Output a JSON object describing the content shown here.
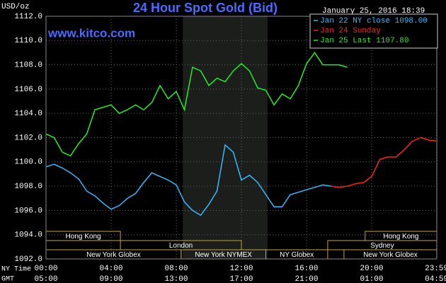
{
  "chart_data": {
    "type": "line",
    "title": "24 Hour Spot Gold (Bid)",
    "timestamp": "January 25, 2016 18:39",
    "source": "www.kitco.com",
    "y_label": "USD/oz",
    "x_label": "NY Time",
    "x2_label": "GMT",
    "xlim": [
      0,
      24
    ],
    "ylim": [
      1092,
      1112
    ],
    "grid": true,
    "legend": "top-right",
    "yticks": [
      {
        "value": 1092,
        "label": "1092.0"
      },
      {
        "value": 1094,
        "label": "1094.0"
      },
      {
        "value": 1096,
        "label": "1096.0"
      },
      {
        "value": 1098,
        "label": "1098.0"
      },
      {
        "value": 1100,
        "label": "1100.0"
      },
      {
        "value": 1102,
        "label": "1102.0"
      },
      {
        "value": 1104,
        "label": "1104.0"
      },
      {
        "value": 1106,
        "label": "1106.0"
      },
      {
        "value": 1108,
        "label": "1108.0"
      },
      {
        "value": 1110,
        "label": "1110.0"
      },
      {
        "value": 1112,
        "label": "1112.0"
      }
    ],
    "xticks": [
      {
        "value": 0,
        "label": "00:00"
      },
      {
        "value": 4,
        "label": "04:00"
      },
      {
        "value": 8,
        "label": "08:00"
      },
      {
        "value": 12,
        "label": "12:00"
      },
      {
        "value": 16,
        "label": "16:00"
      },
      {
        "value": 20,
        "label": "20:00"
      },
      {
        "value": 23.983,
        "label": "23:59"
      }
    ],
    "xticks_gmt": [
      {
        "value": 0,
        "label": "05:00"
      },
      {
        "value": 4,
        "label": "09:00"
      },
      {
        "value": 8,
        "label": "13:00"
      },
      {
        "value": 12,
        "label": "17:00"
      },
      {
        "value": 16,
        "label": "21:00"
      },
      {
        "value": 20,
        "label": "01:00"
      },
      {
        "value": 23.983,
        "label": "04:59"
      }
    ],
    "shaded": [
      8.4,
      13.6
    ],
    "sessions": [
      [
        {
          "label": "Hong Kong",
          "start": 0,
          "end": 4.57
        },
        {
          "label": "Hong Kong",
          "start": 19.6,
          "end": 24
        }
      ],
      [
        {
          "label": "London",
          "start": 4.57,
          "end": 12.0
        },
        {
          "label": "Sydney",
          "start": 17.3,
          "end": 24
        }
      ],
      [
        {
          "label": "New York Globex",
          "start": 0,
          "end": 8.3
        },
        {
          "label": "New York NYMEX",
          "start": 8.3,
          "end": 13.5
        },
        {
          "label": "NY Globex",
          "start": 13.5,
          "end": 17.3
        },
        {
          "label": "New York Globex",
          "start": 18.3,
          "end": 24
        }
      ]
    ],
    "series": [
      {
        "name": "Jan 22 NY close 1098.00",
        "color": "#33bbff",
        "x": [
          0,
          0.5,
          1,
          1.5,
          2,
          2.5,
          3,
          3.5,
          4,
          4.5,
          5,
          5.5,
          6,
          6.5,
          7,
          7.5,
          8,
          8.5,
          9,
          9.5,
          10,
          10.5,
          11,
          11.5,
          12,
          12.5,
          13,
          13.5,
          14,
          14.5,
          15,
          15.5,
          16,
          16.5,
          17,
          17.5
        ],
        "values": [
          1099.6,
          1099.8,
          1099.5,
          1099.1,
          1098.6,
          1097.6,
          1097.2,
          1096.6,
          1096.1,
          1096.4,
          1097.0,
          1097.4,
          1098.3,
          1099.1,
          1098.8,
          1098.5,
          1098.1,
          1096.7,
          1096.0,
          1095.6,
          1096.5,
          1097.6,
          1101.4,
          1100.8,
          1098.5,
          1098.9,
          1098.3,
          1097.3,
          1096.3,
          1096.3,
          1097.3,
          1097.5,
          1097.7,
          1097.9,
          1098.1,
          1098.0
        ]
      },
      {
        "name": "Jan 24 Sunday",
        "color": "#ff2020",
        "x": [
          17.5,
          18,
          18.5,
          19,
          19.5,
          20,
          20.5,
          21,
          21.5,
          22,
          22.5,
          23,
          23.5,
          24
        ],
        "values": [
          1098.0,
          1097.9,
          1098.0,
          1098.2,
          1098.3,
          1098.8,
          1100.2,
          1100.4,
          1100.4,
          1101.0,
          1101.7,
          1102.0,
          1101.8,
          1101.7
        ]
      },
      {
        "name": "Jan 25 Last 1107.80",
        "color": "#22ee22",
        "x": [
          0,
          0.5,
          1,
          1.5,
          2,
          2.5,
          3,
          3.5,
          4,
          4.5,
          5,
          5.5,
          6,
          6.5,
          7,
          7.5,
          8,
          8.5,
          9,
          9.5,
          10,
          10.5,
          11,
          11.5,
          12,
          12.5,
          13,
          13.5,
          14,
          14.5,
          15,
          15.5,
          16,
          16.5,
          17,
          17.5,
          18,
          18.5
        ],
        "values": [
          1102.3,
          1102.0,
          1100.8,
          1100.5,
          1101.5,
          1102.3,
          1104.3,
          1104.5,
          1104.7,
          1104.0,
          1104.3,
          1104.7,
          1104.3,
          1104.9,
          1106.3,
          1105.2,
          1105.8,
          1104.3,
          1107.8,
          1107.5,
          1106.3,
          1106.9,
          1106.6,
          1107.5,
          1108.1,
          1107.5,
          1106.1,
          1105.9,
          1104.7,
          1105.6,
          1105.2,
          1106.3,
          1108.1,
          1109.0,
          1108.0,
          1108.0,
          1108.0,
          1107.8
        ]
      }
    ]
  }
}
